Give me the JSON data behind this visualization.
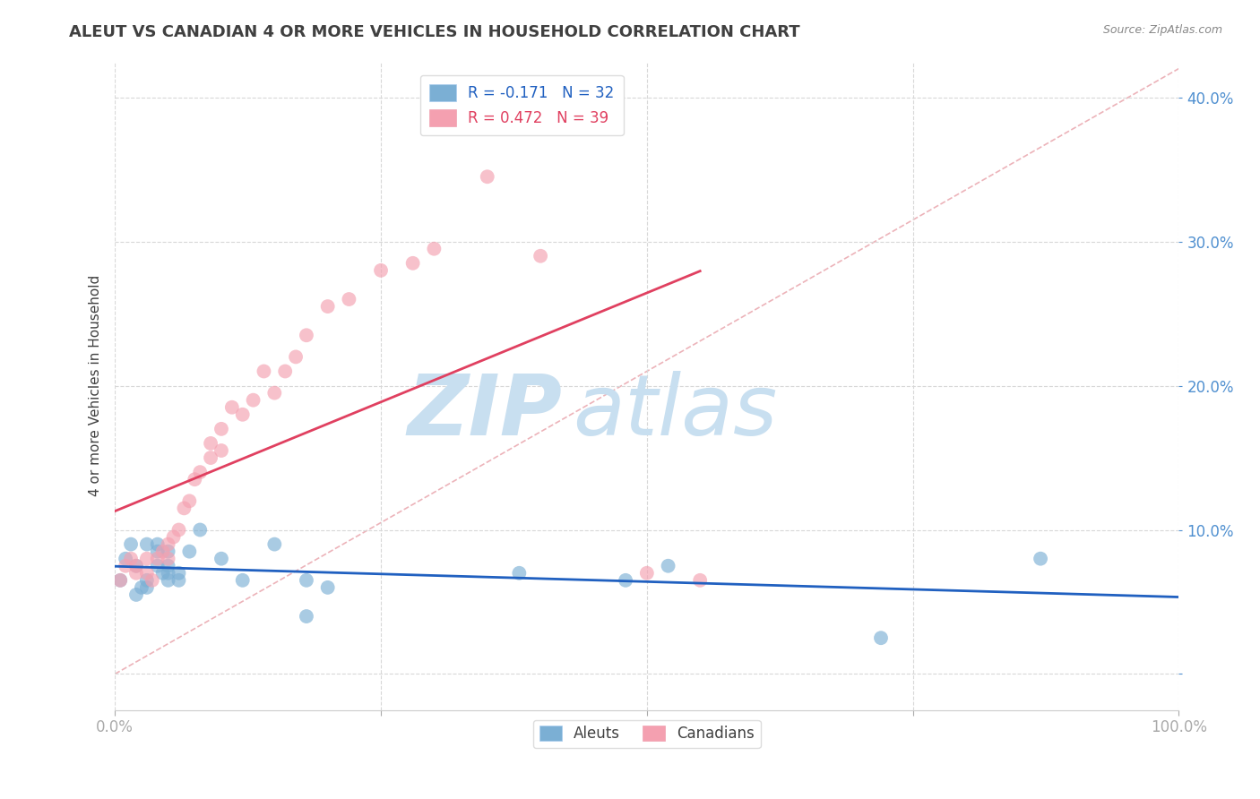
{
  "title": "ALEUT VS CANADIAN 4 OR MORE VEHICLES IN HOUSEHOLD CORRELATION CHART",
  "source": "Source: ZipAtlas.com",
  "ylabel": "4 or more Vehicles in Household",
  "xlim": [
    0.0,
    1.0
  ],
  "ylim": [
    -0.025,
    0.425
  ],
  "xticks": [
    0.0,
    0.25,
    0.5,
    0.75,
    1.0
  ],
  "xticklabels": [
    "0.0%",
    "",
    "",
    "",
    "100.0%"
  ],
  "yticks": [
    0.0,
    0.1,
    0.2,
    0.3,
    0.4
  ],
  "yticklabels": [
    "",
    "10.0%",
    "20.0%",
    "30.0%",
    "40.0%"
  ],
  "aleuts_x": [
    0.005,
    0.01,
    0.015,
    0.02,
    0.02,
    0.025,
    0.03,
    0.03,
    0.03,
    0.04,
    0.04,
    0.04,
    0.045,
    0.05,
    0.05,
    0.05,
    0.05,
    0.06,
    0.06,
    0.07,
    0.08,
    0.1,
    0.12,
    0.15,
    0.18,
    0.18,
    0.2,
    0.38,
    0.48,
    0.52,
    0.72,
    0.87
  ],
  "aleuts_y": [
    0.065,
    0.08,
    0.09,
    0.075,
    0.055,
    0.06,
    0.09,
    0.065,
    0.06,
    0.085,
    0.09,
    0.075,
    0.07,
    0.075,
    0.085,
    0.07,
    0.065,
    0.07,
    0.065,
    0.085,
    0.1,
    0.08,
    0.065,
    0.09,
    0.065,
    0.04,
    0.06,
    0.07,
    0.065,
    0.075,
    0.025,
    0.08
  ],
  "canadians_x": [
    0.005,
    0.01,
    0.015,
    0.02,
    0.02,
    0.03,
    0.03,
    0.035,
    0.04,
    0.045,
    0.05,
    0.05,
    0.055,
    0.06,
    0.065,
    0.07,
    0.075,
    0.08,
    0.09,
    0.09,
    0.1,
    0.1,
    0.11,
    0.12,
    0.13,
    0.14,
    0.15,
    0.16,
    0.17,
    0.18,
    0.2,
    0.22,
    0.25,
    0.28,
    0.3,
    0.35,
    0.4,
    0.5,
    0.55
  ],
  "canadians_y": [
    0.065,
    0.075,
    0.08,
    0.075,
    0.07,
    0.08,
    0.07,
    0.065,
    0.08,
    0.085,
    0.09,
    0.08,
    0.095,
    0.1,
    0.115,
    0.12,
    0.135,
    0.14,
    0.15,
    0.16,
    0.17,
    0.155,
    0.185,
    0.18,
    0.19,
    0.21,
    0.195,
    0.21,
    0.22,
    0.235,
    0.255,
    0.26,
    0.28,
    0.285,
    0.295,
    0.345,
    0.29,
    0.07,
    0.065
  ],
  "aleut_R": -0.171,
  "aleut_N": 32,
  "canadian_R": 0.472,
  "canadian_N": 39,
  "aleut_color": "#7bafd4",
  "canadian_color": "#f4a0b0",
  "aleut_line_color": "#2060c0",
  "canadian_line_color": "#e04060",
  "diagonal_color": "#e8a0a8",
  "grid_color": "#d8d8d8",
  "watermark_text": "ZIPatlas",
  "watermark_color": "#daeaf8",
  "title_color": "#404040",
  "tick_color": "#5090d0",
  "background_color": "#ffffff",
  "legend_label_aleut": "R = -0.171   N = 32",
  "legend_label_canadian": "R = 0.472   N = 39"
}
